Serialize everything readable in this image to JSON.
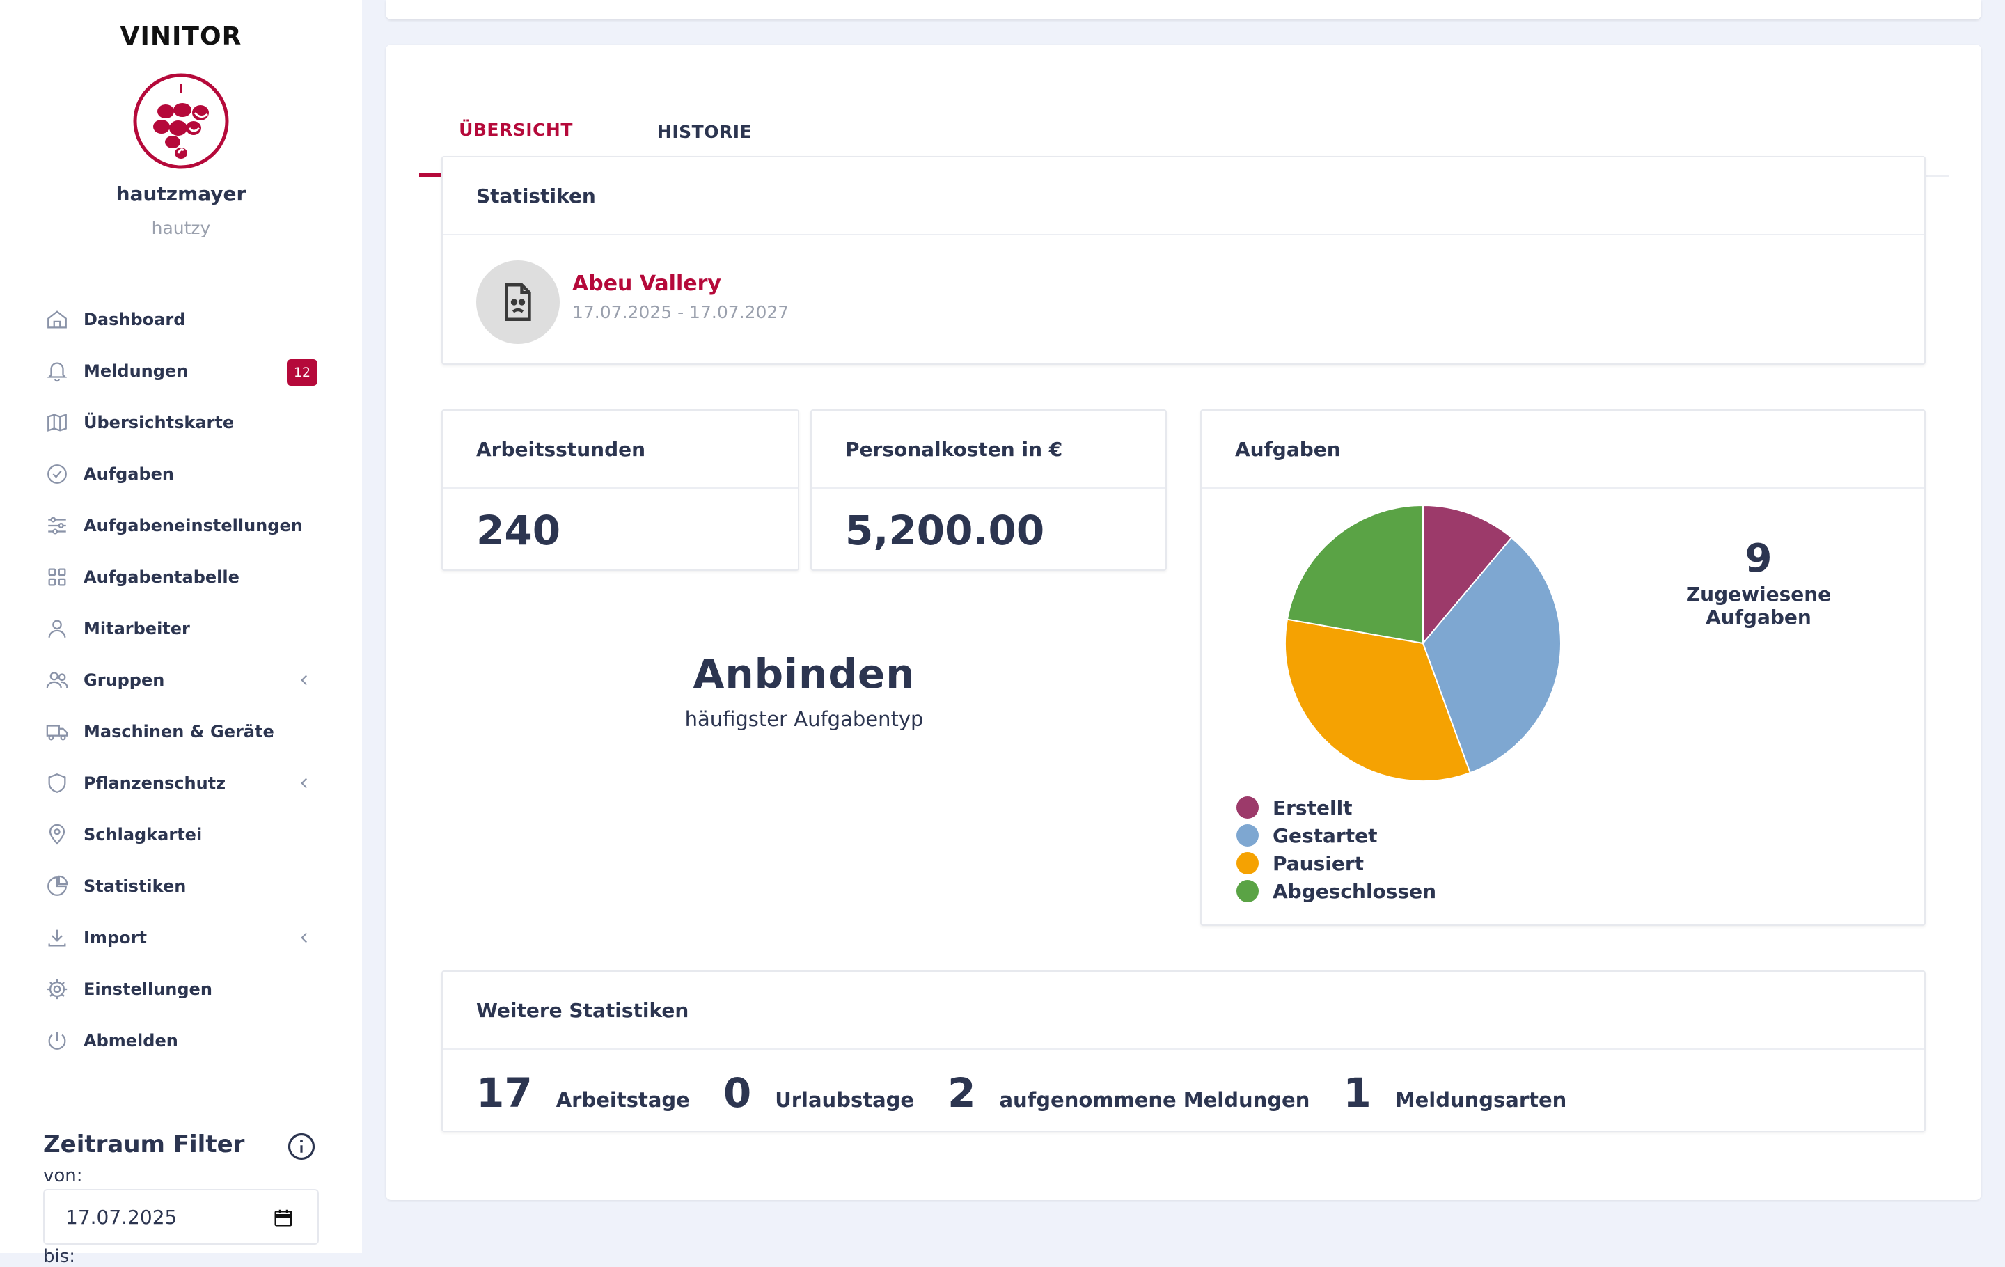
{
  "app": {
    "brand": "VINITOR"
  },
  "user": {
    "name": "hautzmayer",
    "handle": "hautzy"
  },
  "nav": {
    "items": [
      {
        "label": "Dashboard",
        "icon": "home-icon"
      },
      {
        "label": "Meldungen",
        "icon": "bell-icon",
        "badge": "12"
      },
      {
        "label": "Übersichtskarte",
        "icon": "map-icon"
      },
      {
        "label": "Aufgaben",
        "icon": "check-circle-icon"
      },
      {
        "label": "Aufgabeneinstellungen",
        "icon": "sliders-icon"
      },
      {
        "label": "Aufgabentabelle",
        "icon": "grid-icon"
      },
      {
        "label": "Mitarbeiter",
        "icon": "user-icon"
      },
      {
        "label": "Gruppen",
        "icon": "users-icon",
        "expandable": true
      },
      {
        "label": "Maschinen & Geräte",
        "icon": "truck-icon"
      },
      {
        "label": "Pflanzenschutz",
        "icon": "shield-icon",
        "expandable": true
      },
      {
        "label": "Schlagkartei",
        "icon": "map-pin-icon"
      },
      {
        "label": "Statistiken",
        "icon": "pie-chart-icon"
      },
      {
        "label": "Import",
        "icon": "download-icon",
        "expandable": true
      },
      {
        "label": "Einstellungen",
        "icon": "gear-icon"
      },
      {
        "label": "Abmelden",
        "icon": "power-icon"
      }
    ]
  },
  "filter": {
    "title": "Zeitraum Filter",
    "from_label": "von:",
    "from_value": "17.07.2025",
    "to_label": "bis:"
  },
  "tabs": [
    {
      "label": "ÜBERSICHT",
      "active": true
    },
    {
      "label": "HISTORIE",
      "active": false
    }
  ],
  "stats": {
    "title": "Statistiken",
    "season": {
      "name": "Abeu Vallery",
      "range": "17.07.2025 - 17.07.2027"
    }
  },
  "hours": {
    "title": "Arbeitsstunden",
    "value": "240"
  },
  "costs": {
    "title": "Personalkosten in €",
    "value": "5,200.00"
  },
  "most_common": {
    "value": "Anbinden",
    "label": "häufigster Aufgabentyp"
  },
  "tasks": {
    "title": "Aufgaben",
    "count": "9",
    "count_label": "Zugewiesene Aufgaben",
    "legend": [
      {
        "label": "Erstellt",
        "color": "#9c3a6a"
      },
      {
        "label": "Gestartet",
        "color": "#7ea7d1"
      },
      {
        "label": "Pausiert",
        "color": "#f5a202"
      },
      {
        "label": "Abgeschlossen",
        "color": "#5aa345"
      }
    ]
  },
  "chart_data": {
    "type": "pie",
    "categories": [
      "Erstellt",
      "Gestartet",
      "Pausiert",
      "Abgeschlossen"
    ],
    "values": [
      1,
      3,
      3,
      2
    ],
    "colors": [
      "#9c3a6a",
      "#7ea7d1",
      "#f5a202",
      "#5aa345"
    ],
    "legend": "bottom-left"
  },
  "more": {
    "title": "Weitere Statistiken",
    "items": [
      {
        "value": "17",
        "label": "Arbeitstage"
      },
      {
        "value": "0",
        "label": "Urlaubstage"
      },
      {
        "value": "2",
        "label": "aufgenommene Meldungen"
      },
      {
        "value": "1",
        "label": "Meldungsarten"
      }
    ]
  }
}
